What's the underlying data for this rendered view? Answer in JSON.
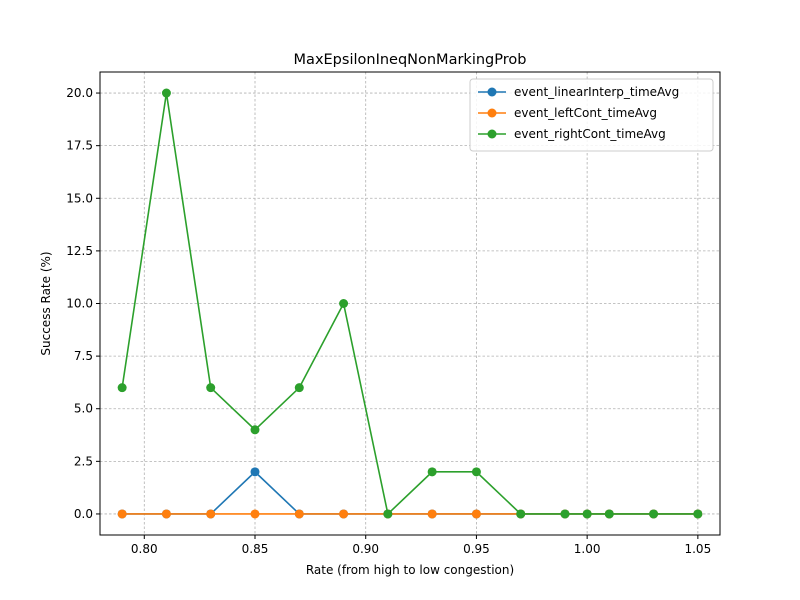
{
  "chart_data": {
    "type": "line",
    "title": "MaxEpsilonIneqNonMarkingProb",
    "xlabel": "Rate (from high to low congestion)",
    "ylabel": "Success Rate (%)",
    "xlim": [
      0.78,
      1.06
    ],
    "ylim": [
      -1.0,
      21.0
    ],
    "xticks": [
      "0.80",
      "0.85",
      "0.90",
      "0.95",
      "1.00",
      "1.05"
    ],
    "yticks": [
      "0.0",
      "2.5",
      "5.0",
      "7.5",
      "10.0",
      "12.5",
      "15.0",
      "17.5",
      "20.0"
    ],
    "grid": true,
    "legend_position": "top-right",
    "x": [
      0.79,
      0.81,
      0.83,
      0.85,
      0.87,
      0.89,
      0.91,
      0.93,
      0.95,
      0.97,
      0.99,
      1.0,
      1.01,
      1.03,
      1.05
    ],
    "series": [
      {
        "name": "event_linearInterp_timeAvg",
        "color": "#1f77b4",
        "values": [
          0,
          0,
          0,
          2,
          0,
          0,
          0,
          0,
          0,
          0,
          0,
          0,
          0,
          0,
          0
        ]
      },
      {
        "name": "event_leftCont_timeAvg",
        "color": "#ff7f0e",
        "values": [
          0,
          0,
          0,
          0,
          0,
          0,
          0,
          0,
          0,
          0,
          0,
          0,
          0,
          0,
          0
        ]
      },
      {
        "name": "event_rightCont_timeAvg",
        "color": "#2ca02c",
        "values": [
          6,
          20,
          6,
          4,
          6,
          10,
          0,
          2,
          2,
          0,
          0,
          0,
          0,
          0,
          0
        ]
      }
    ]
  }
}
